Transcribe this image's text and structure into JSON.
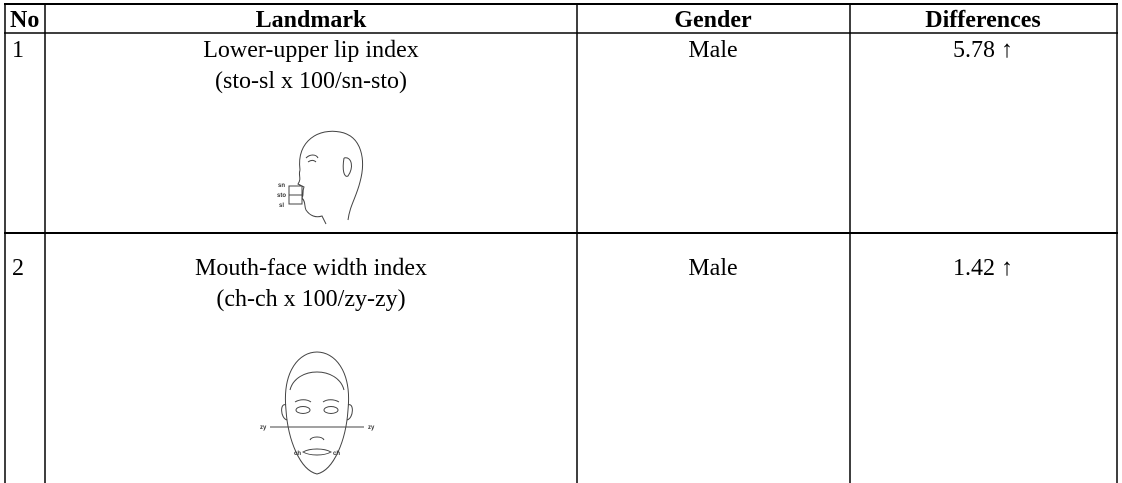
{
  "table": {
    "header": [
      "No",
      "Landmark",
      "Gender",
      "Differences"
    ],
    "rows": [
      {
        "no": "1",
        "landmark": [
          "Lower-upper lip index",
          "(sto-sl x 100/sn-sto)"
        ],
        "gender": "Male",
        "difference": "5.78 ↑",
        "figure_labels": [
          "sn",
          "sto",
          "sl"
        ]
      },
      {
        "no": "2",
        "landmark": [
          "Mouth-face width index",
          "(ch-ch x 100/zy-zy)"
        ],
        "gender": "Male",
        "difference": "1.42 ↑",
        "figure_labels": [
          "zy",
          "zy",
          "ch",
          "ch"
        ]
      }
    ]
  }
}
